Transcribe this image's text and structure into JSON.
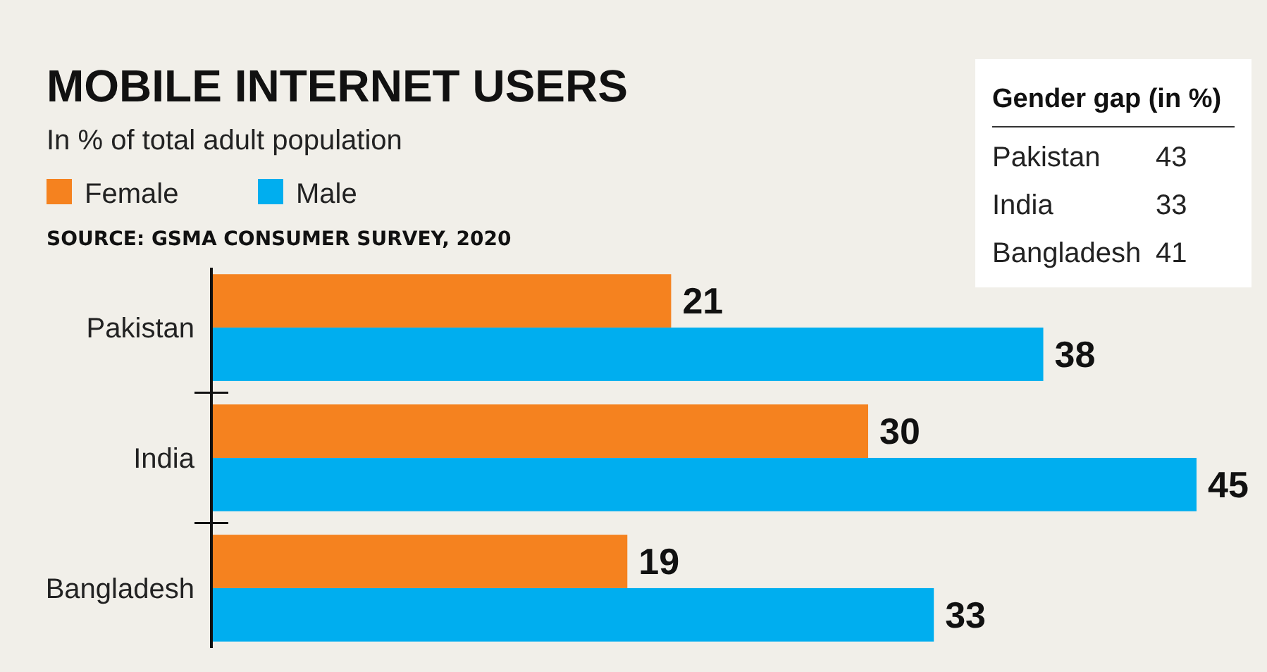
{
  "chart_data": {
    "type": "bar",
    "orientation": "horizontal",
    "title": "MOBILE INTERNET USERS",
    "subtitle": "In % of total adult population",
    "categories": [
      "Pakistan",
      "India",
      "Bangladesh"
    ],
    "series": [
      {
        "name": "Female",
        "color": "#f5821f",
        "values": [
          21,
          30,
          19
        ]
      },
      {
        "name": "Male",
        "color": "#00aeef",
        "values": [
          38,
          45,
          33
        ]
      }
    ],
    "xlim": [
      0,
      45
    ],
    "tick_labels": "y",
    "data_labels": true,
    "legend": "top left",
    "annotations": [
      "SOURCE: GSMA CONSUMER SURVEY, 2020",
      "Gender gap (in %)",
      "Pakistan 43",
      "India 33",
      "Bangladesh 41"
    ]
  }
}
